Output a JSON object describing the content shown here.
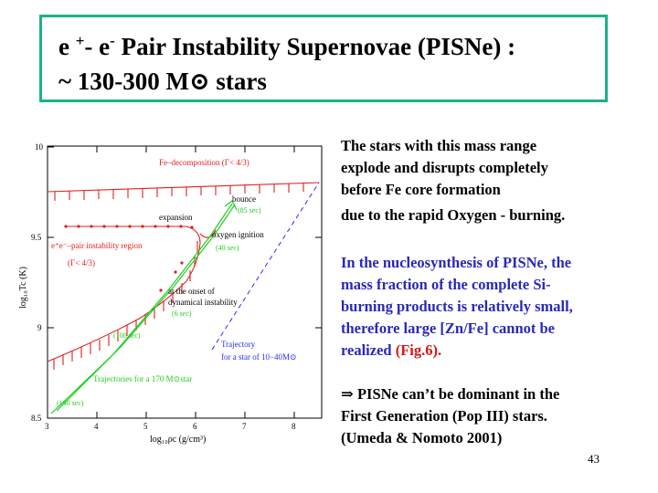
{
  "title": {
    "line1_prefix": "e ",
    "line1_sup1": "+",
    "line1_mid": "- e",
    "line1_sup2": "-",
    "line1_rest": " Pair Instability Supernovae (PISNe) :",
    "line2": " ~ 130-300 M⊙ stars"
  },
  "figure": {
    "xlabel": "log₁₀ρc   (g/cm³)",
    "ylabel": "log₁₀Tc (K)",
    "x_ticks": [
      "3",
      "4",
      "5",
      "6",
      "7",
      "8"
    ],
    "y_ticks": [
      "8.5",
      "9",
      "9.5",
      "10"
    ],
    "annotations": {
      "fe_decomp": "Fe–decomposition  (Γ< 4/3)",
      "bounce": "bounce",
      "bounce_time": "(85 sec)",
      "expansion": "expansion",
      "oxygen": "oxygen ignition",
      "oxygen_time": "(40 sec)",
      "pair_region": "e⁺e⁻–pair instability region",
      "pair_gamma": "(Γ< 4/3)",
      "onset1": "at the onset of",
      "onset2": "dynamical instability",
      "onset_time": "(6 sec)",
      "t100": "(100 sec)",
      "traj1": "Trajectory",
      "traj2": "for a star of 10−40M⊙",
      "traj170": "Trajectories for a 170 M⊙star",
      "t140": "(140 sec)"
    },
    "colors": {
      "red": "#e02020",
      "green": "#22cc22",
      "blue": "#2a2aff"
    }
  },
  "body": {
    "para1": [
      "The stars with this mass range",
      "explode and disrupts completely",
      "before Fe core formation",
      "due to the rapid Oxygen - burning."
    ],
    "para2": [
      "In the nucleosynthesis of PISNe, the",
      "mass fraction of the complete Si-",
      "burning products is relatively small,",
      "therefore large [Zn/Fe] cannot be"
    ],
    "para2_last": "realized ",
    "para2_ref": "(Fig.6).",
    "para3": [
      "⇒ PISNe can’t be dominant in the",
      "First Generation (Pop III) stars.",
      "(Umeda & Nomoto 2001)"
    ]
  },
  "page_number": "43"
}
